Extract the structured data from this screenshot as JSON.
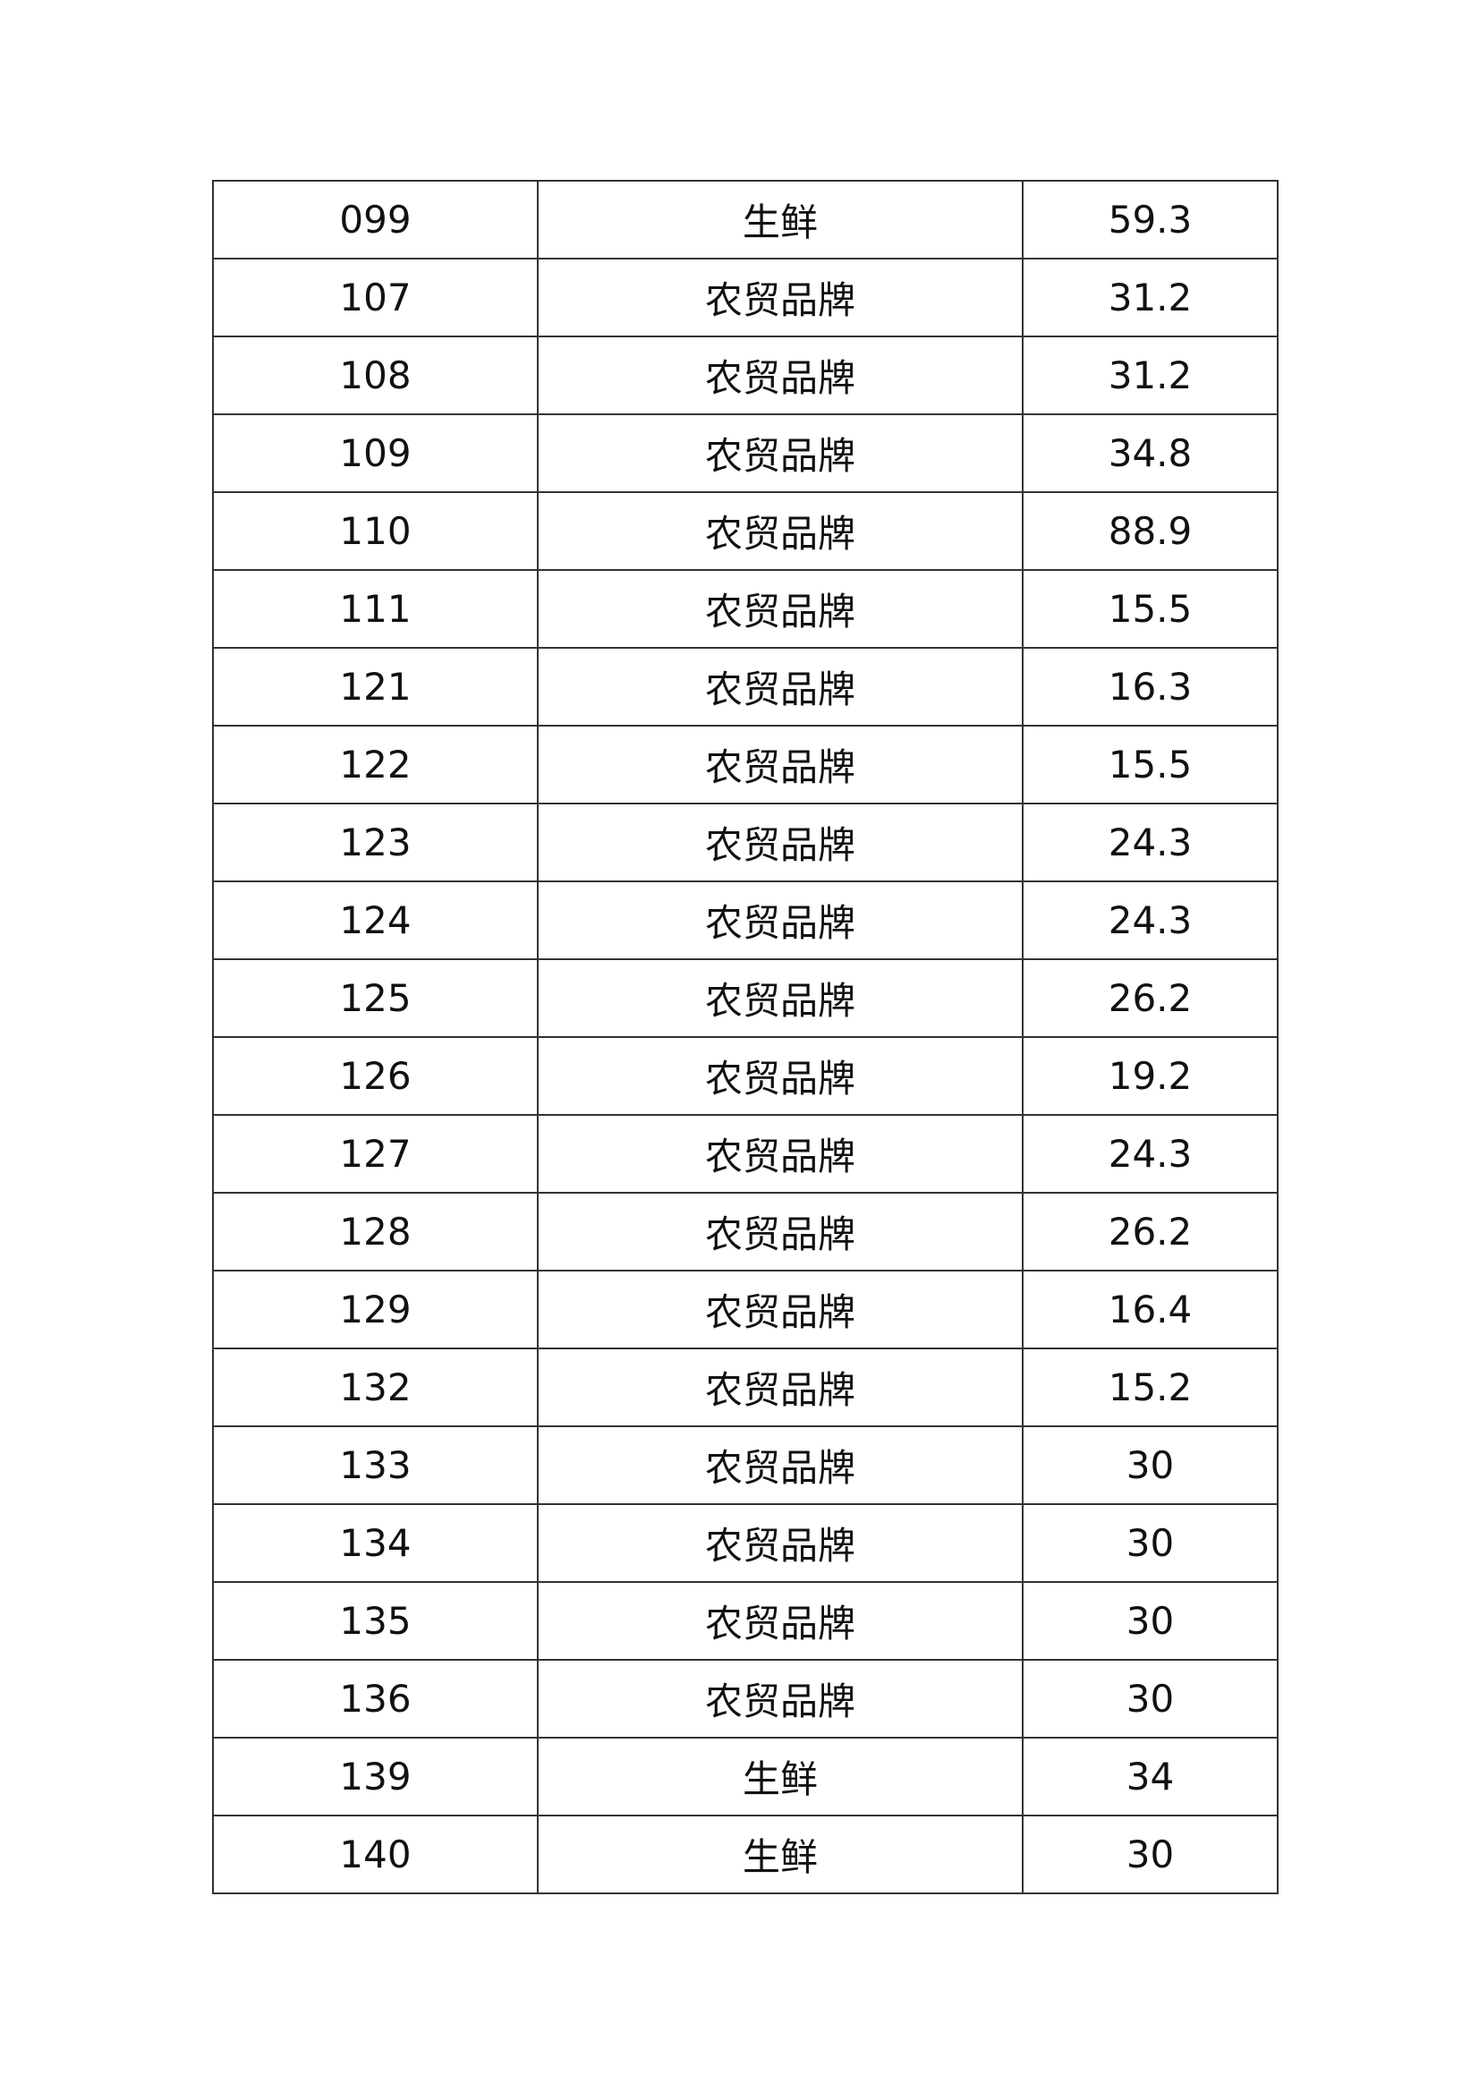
{
  "table": {
    "rows": [
      [
        "099",
        "生鲜",
        "59.3"
      ],
      [
        "107",
        "农贸品牌",
        "31.2"
      ],
      [
        "108",
        "农贸品牌",
        "31.2"
      ],
      [
        "109",
        "农贸品牌",
        "34.8"
      ],
      [
        "110",
        "农贸品牌",
        "88.9"
      ],
      [
        "111",
        "农贸品牌",
        "15.5"
      ],
      [
        "121",
        "农贸品牌",
        "16.3"
      ],
      [
        "122",
        "农贸品牌",
        "15.5"
      ],
      [
        "123",
        "农贸品牌",
        "24.3"
      ],
      [
        "124",
        "农贸品牌",
        "24.3"
      ],
      [
        "125",
        "农贸品牌",
        "26.2"
      ],
      [
        "126",
        "农贸品牌",
        "19.2"
      ],
      [
        "127",
        "农贸品牌",
        "24.3"
      ],
      [
        "128",
        "农贸品牌",
        "26.2"
      ],
      [
        "129",
        "农贸品牌",
        "16.4"
      ],
      [
        "132",
        "农贸品牌",
        "15.2"
      ],
      [
        "133",
        "农贸品牌",
        "30"
      ],
      [
        "134",
        "农贸品牌",
        "30"
      ],
      [
        "135",
        "农贸品牌",
        "30"
      ],
      [
        "136",
        "农贸品牌",
        "30"
      ],
      [
        "139",
        "生鲜",
        "34"
      ],
      [
        "140",
        "生鲜",
        "30"
      ]
    ]
  }
}
